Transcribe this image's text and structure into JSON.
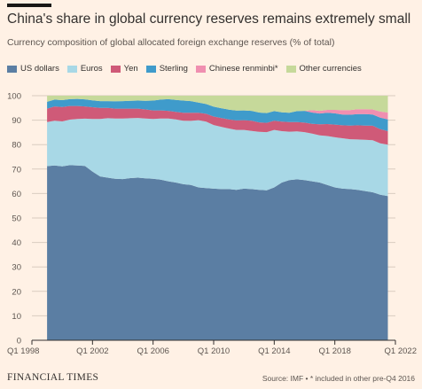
{
  "header": {
    "title": "China's share in global currency reserves remains extremely small",
    "subtitle": "Currency composition of global allocated foreign exchange reserves (% of total)"
  },
  "footer": {
    "brand": "FINANCIAL TIMES",
    "source": "Source: IMF • * included in other pre-Q4 2016"
  },
  "colors": {
    "us_dollars": "#5b7ea3",
    "euros": "#a8d8e6",
    "yen": "#cf5a78",
    "sterling": "#3f9bcb",
    "chinese_renminbi": "#f08fb0",
    "other": "#c6d99a",
    "grid": "#d9ccc0",
    "axis": "#33302e"
  },
  "chart_data": {
    "type": "area",
    "stacked": true,
    "ylim": [
      0,
      100
    ],
    "y_ticks": [
      0,
      10,
      20,
      30,
      40,
      50,
      60,
      70,
      80,
      90,
      100
    ],
    "x_ticks": [
      "Q1 1998",
      "Q1 2002",
      "Q1 2006",
      "Q1 2010",
      "Q1 2014",
      "Q1 2018",
      "Q1 2022"
    ],
    "x_range": [
      1998.0,
      2022.0
    ],
    "legend_position": "top",
    "x": [
      1999.0,
      1999.5,
      2000.0,
      2000.5,
      2001.0,
      2001.5,
      2002.0,
      2002.5,
      2003.0,
      2003.5,
      2004.0,
      2004.5,
      2005.0,
      2005.5,
      2006.0,
      2006.5,
      2007.0,
      2007.5,
      2008.0,
      2008.5,
      2009.0,
      2009.5,
      2010.0,
      2010.5,
      2011.0,
      2011.5,
      2012.0,
      2012.5,
      2013.0,
      2013.5,
      2014.0,
      2014.5,
      2015.0,
      2015.5,
      2016.0,
      2016.5,
      2017.0,
      2017.5,
      2018.0,
      2018.5,
      2019.0,
      2019.5,
      2020.0,
      2020.5,
      2021.0,
      2021.5
    ],
    "series": [
      {
        "name": "US dollars",
        "values": [
          71.2,
          71.5,
          71.1,
          71.6,
          71.5,
          71.3,
          69.0,
          67.0,
          66.5,
          66.0,
          65.9,
          66.3,
          66.5,
          66.2,
          66.0,
          65.7,
          65.0,
          64.5,
          63.8,
          63.5,
          62.5,
          62.2,
          62.0,
          61.8,
          61.8,
          61.5,
          62.0,
          61.8,
          61.5,
          61.3,
          62.5,
          64.5,
          65.5,
          65.8,
          65.5,
          65.0,
          64.5,
          63.5,
          62.5,
          62.0,
          61.8,
          61.5,
          61.0,
          60.5,
          59.5,
          59.0
        ]
      },
      {
        "name": "Euros",
        "values": [
          18.0,
          18.3,
          18.4,
          18.6,
          19.0,
          19.3,
          21.5,
          23.5,
          24.3,
          24.7,
          24.8,
          24.5,
          24.4,
          24.5,
          24.5,
          25.0,
          25.7,
          25.8,
          26.0,
          26.2,
          27.5,
          27.2,
          26.0,
          25.5,
          24.8,
          24.5,
          24.0,
          23.8,
          23.7,
          23.8,
          23.5,
          21.0,
          19.8,
          19.6,
          19.6,
          19.5,
          19.3,
          20.0,
          20.5,
          20.6,
          20.4,
          20.6,
          21.0,
          21.3,
          21.0,
          21.0
        ]
      },
      {
        "name": "Yen",
        "values": [
          5.5,
          5.8,
          5.9,
          5.6,
          5.3,
          5.0,
          4.8,
          4.5,
          4.2,
          4.0,
          4.0,
          3.9,
          3.8,
          3.7,
          3.5,
          3.3,
          3.1,
          3.1,
          3.2,
          3.3,
          3.0,
          3.2,
          3.5,
          3.6,
          3.7,
          3.9,
          4.0,
          4.2,
          3.9,
          3.8,
          3.8,
          3.9,
          3.9,
          3.8,
          3.9,
          4.0,
          4.5,
          4.9,
          5.2,
          5.3,
          5.6,
          5.8,
          5.8,
          5.9,
          5.8,
          5.5
        ]
      },
      {
        "name": "Sterling",
        "values": [
          2.8,
          2.8,
          2.8,
          2.8,
          2.9,
          2.9,
          2.8,
          2.8,
          2.8,
          3.0,
          3.1,
          3.2,
          3.3,
          3.5,
          4.0,
          4.4,
          4.8,
          4.9,
          5.0,
          4.8,
          4.2,
          4.0,
          4.0,
          4.0,
          4.0,
          4.0,
          4.0,
          4.0,
          4.0,
          4.0,
          3.9,
          3.8,
          3.8,
          4.5,
          4.8,
          4.6,
          4.4,
          4.6,
          4.6,
          4.4,
          4.4,
          4.6,
          4.7,
          4.6,
          4.7,
          4.8
        ]
      },
      {
        "name": "Chinese renminbi*",
        "values": [
          0,
          0,
          0,
          0,
          0,
          0,
          0,
          0,
          0,
          0,
          0,
          0,
          0,
          0,
          0,
          0,
          0,
          0,
          0,
          0,
          0,
          0,
          0,
          0,
          0,
          0,
          0,
          0,
          0,
          0,
          0,
          0,
          0,
          0,
          0,
          1.0,
          1.1,
          1.2,
          1.4,
          1.8,
          1.9,
          2.0,
          2.0,
          2.1,
          2.5,
          2.8
        ]
      },
      {
        "name": "Other currencies",
        "values": [
          2.5,
          1.6,
          1.8,
          1.4,
          1.3,
          1.5,
          1.9,
          2.2,
          2.2,
          2.3,
          2.2,
          2.1,
          2.0,
          2.1,
          2.0,
          1.6,
          1.4,
          1.7,
          2.0,
          2.2,
          2.8,
          3.4,
          4.5,
          5.1,
          5.7,
          6.1,
          6.0,
          6.2,
          6.9,
          7.1,
          6.3,
          6.8,
          7.0,
          6.3,
          6.2,
          5.9,
          6.2,
          5.8,
          5.8,
          5.9,
          5.9,
          5.5,
          5.5,
          5.6,
          6.5,
          6.9
        ]
      }
    ]
  }
}
